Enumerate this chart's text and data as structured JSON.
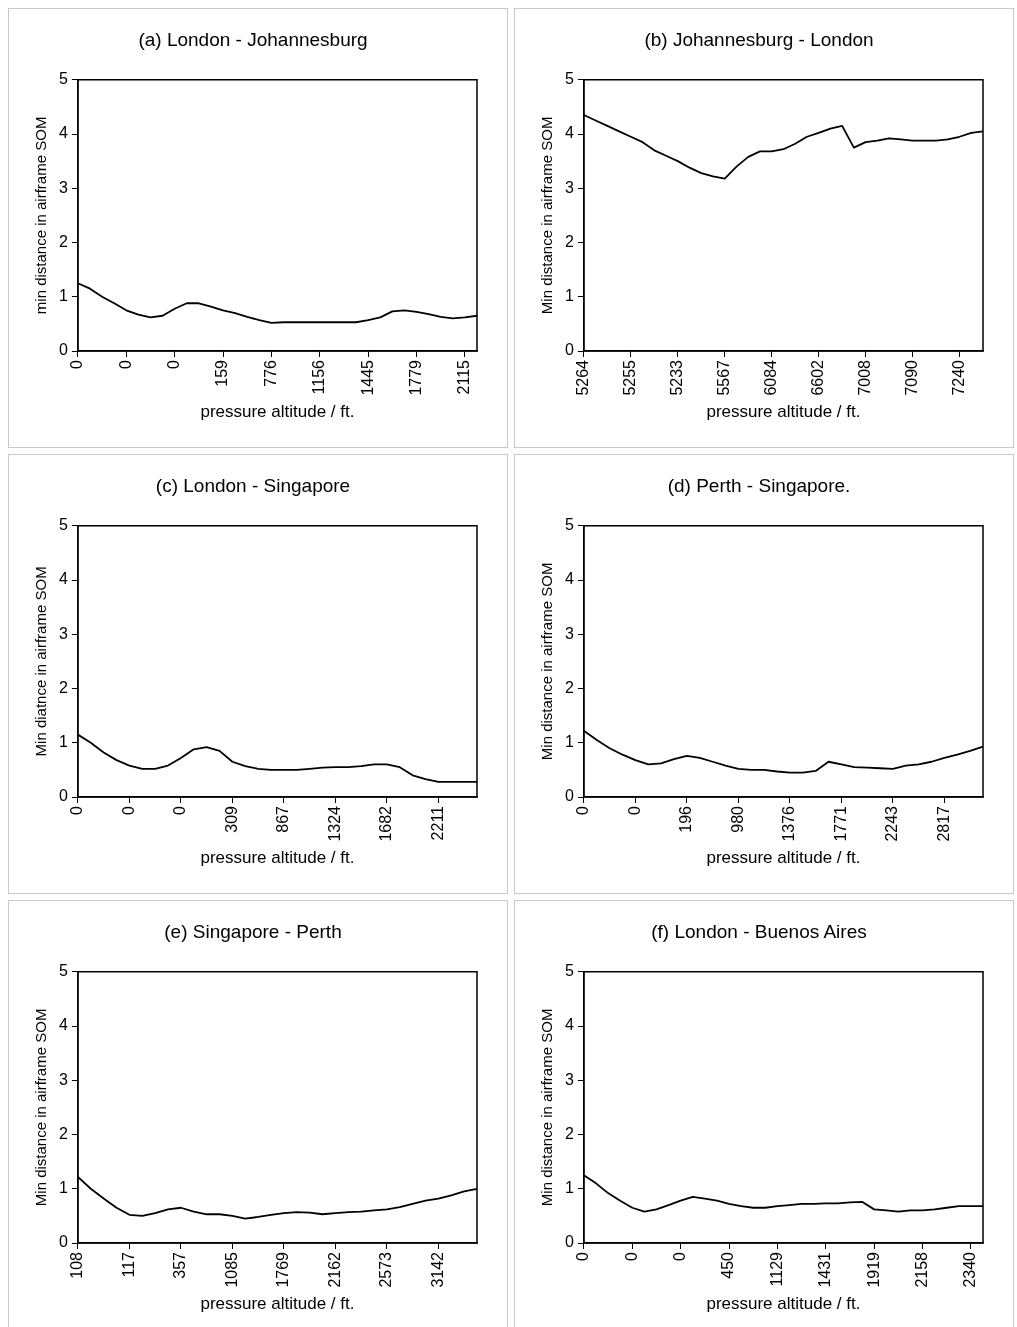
{
  "chart_data": [
    {
      "type": "line",
      "title": "(a) London - Johannesburg",
      "xlabel": "pressure altitude / ft.",
      "ylabel": "min distance in airframe SOM",
      "categories": [
        "0",
        null,
        null,
        null,
        "0",
        null,
        null,
        null,
        "0",
        null,
        null,
        null,
        "159",
        null,
        null,
        null,
        "776",
        null,
        null,
        null,
        "1156",
        null,
        null,
        null,
        "1445",
        null,
        null,
        null,
        "1779",
        null,
        null,
        null,
        "2115",
        null
      ],
      "series": [
        {
          "color": "#000000",
          "values": [
            1.25,
            1.15,
            1.0,
            0.88,
            0.75,
            0.67,
            0.62,
            0.65,
            0.78,
            0.88,
            0.88,
            0.82,
            0.75,
            0.7,
            0.63,
            0.57,
            0.52,
            0.53,
            0.53,
            0.53,
            0.53,
            0.53,
            0.53,
            0.53,
            0.57,
            0.62,
            0.73,
            0.75,
            0.72,
            0.68,
            0.63,
            0.6,
            0.62,
            0.65
          ]
        }
      ],
      "ylim": [
        0,
        5
      ],
      "yticks": [
        0,
        1,
        2,
        3,
        4,
        5
      ],
      "grid": false,
      "legend": false,
      "marker": "none",
      "line_style": "solid"
    },
    {
      "type": "line",
      "title": "(b) Johannesburg - London",
      "xlabel": "pressure altitude / ft.",
      "ylabel": "Min distance in airframe SOM",
      "categories": [
        "5264",
        null,
        null,
        null,
        "5255",
        null,
        null,
        null,
        "5233",
        null,
        null,
        null,
        "5567",
        null,
        null,
        null,
        "6084",
        null,
        null,
        null,
        "6602",
        null,
        null,
        null,
        "7008",
        null,
        null,
        null,
        "7090",
        null,
        null,
        null,
        "7240",
        null,
        null
      ],
      "series": [
        {
          "color": "#000000",
          "values": [
            4.35,
            4.25,
            4.15,
            4.05,
            3.95,
            3.85,
            3.7,
            3.6,
            3.5,
            3.38,
            3.28,
            3.22,
            3.18,
            3.4,
            3.58,
            3.68,
            3.68,
            3.72,
            3.82,
            3.95,
            4.02,
            4.1,
            4.15,
            3.75,
            3.85,
            3.88,
            3.92,
            3.9,
            3.88,
            3.88,
            3.88,
            3.9,
            3.95,
            4.02,
            4.05
          ]
        }
      ],
      "ylim": [
        0,
        5
      ],
      "yticks": [
        0,
        1,
        2,
        3,
        4,
        5
      ],
      "grid": false,
      "legend": false,
      "marker": "none",
      "line_style": "solid"
    },
    {
      "type": "line",
      "title": "(c) London - Singapore",
      "xlabel": "pressure altitude / ft.",
      "ylabel": "Min diatnce in airframe SOM",
      "categories": [
        "0",
        null,
        null,
        null,
        "0",
        null,
        null,
        null,
        "0",
        null,
        null,
        null,
        "309",
        null,
        null,
        null,
        "867",
        null,
        null,
        null,
        "1324",
        null,
        null,
        null,
        "1682",
        null,
        null,
        null,
        "2211",
        null,
        null,
        null
      ],
      "series": [
        {
          "color": "#000000",
          "values": [
            1.15,
            1.0,
            0.82,
            0.68,
            0.58,
            0.52,
            0.52,
            0.58,
            0.72,
            0.88,
            0.92,
            0.85,
            0.65,
            0.57,
            0.52,
            0.5,
            0.5,
            0.5,
            0.52,
            0.54,
            0.55,
            0.55,
            0.57,
            0.6,
            0.6,
            0.55,
            0.4,
            0.33,
            0.28,
            0.28,
            0.28,
            0.28
          ]
        }
      ],
      "ylim": [
        0,
        5
      ],
      "yticks": [
        0,
        1,
        2,
        3,
        4,
        5
      ],
      "grid": false,
      "legend": false,
      "marker": "none",
      "line_style": "solid"
    },
    {
      "type": "line",
      "title": "(d) Perth - Singapore.",
      "xlabel": "pressure altitude / ft.",
      "ylabel": "Min distance in airframe SOM",
      "categories": [
        "0",
        null,
        null,
        null,
        "0",
        null,
        null,
        null,
        "196",
        null,
        null,
        null,
        "980",
        null,
        null,
        null,
        "1376",
        null,
        null,
        null,
        "1771",
        null,
        null,
        null,
        "2243",
        null,
        null,
        null,
        "2817",
        null,
        null,
        null
      ],
      "series": [
        {
          "color": "#000000",
          "values": [
            1.22,
            1.05,
            0.9,
            0.78,
            0.68,
            0.6,
            0.62,
            0.7,
            0.76,
            0.72,
            0.65,
            0.58,
            0.52,
            0.5,
            0.5,
            0.47,
            0.45,
            0.45,
            0.48,
            0.65,
            0.6,
            0.55,
            0.54,
            0.53,
            0.52,
            0.58,
            0.6,
            0.65,
            0.72,
            0.78,
            0.85,
            0.93
          ]
        }
      ],
      "ylim": [
        0,
        5
      ],
      "yticks": [
        0,
        1,
        2,
        3,
        4,
        5
      ],
      "grid": false,
      "legend": false,
      "marker": "none",
      "line_style": "solid"
    },
    {
      "type": "line",
      "title": "(e) Singapore - Perth",
      "xlabel": "pressure altitude / ft.",
      "ylabel": "Min distance in airframe SOM",
      "categories": [
        "108",
        null,
        null,
        null,
        "117",
        null,
        null,
        null,
        "357",
        null,
        null,
        null,
        "1085",
        null,
        null,
        null,
        "1769",
        null,
        null,
        null,
        "2162",
        null,
        null,
        null,
        "2573",
        null,
        null,
        null,
        "3142",
        null,
        null,
        null
      ],
      "series": [
        {
          "color": "#000000",
          "values": [
            1.22,
            1.0,
            0.82,
            0.65,
            0.52,
            0.5,
            0.55,
            0.62,
            0.65,
            0.58,
            0.53,
            0.53,
            0.5,
            0.45,
            0.48,
            0.52,
            0.55,
            0.57,
            0.56,
            0.53,
            0.55,
            0.57,
            0.58,
            0.6,
            0.62,
            0.66,
            0.72,
            0.78,
            0.82,
            0.88,
            0.95,
            1.0
          ]
        }
      ],
      "ylim": [
        0,
        5
      ],
      "yticks": [
        0,
        1,
        2,
        3,
        4,
        5
      ],
      "grid": false,
      "legend": false,
      "marker": "none",
      "line_style": "solid"
    },
    {
      "type": "line",
      "title": "(f) London - Buenos Aires",
      "xlabel": "pressure altitude / ft.",
      "ylabel": "Min distance in airframe SOM",
      "categories": [
        "0",
        null,
        null,
        null,
        "0",
        null,
        null,
        null,
        "0",
        null,
        null,
        null,
        "450",
        null,
        null,
        null,
        "1129",
        null,
        null,
        null,
        "1431",
        null,
        null,
        null,
        "1919",
        null,
        null,
        null,
        "2158",
        null,
        null,
        null,
        "2340",
        null
      ],
      "series": [
        {
          "color": "#000000",
          "values": [
            1.25,
            1.1,
            0.92,
            0.78,
            0.65,
            0.58,
            0.62,
            0.7,
            0.78,
            0.85,
            0.82,
            0.78,
            0.72,
            0.68,
            0.65,
            0.65,
            0.68,
            0.7,
            0.72,
            0.72,
            0.73,
            0.73,
            0.75,
            0.76,
            0.62,
            0.6,
            0.58,
            0.6,
            0.6,
            0.62,
            0.65,
            0.68,
            0.68,
            0.68
          ]
        }
      ],
      "ylim": [
        0,
        5
      ],
      "yticks": [
        0,
        1,
        2,
        3,
        4,
        5
      ],
      "grid": false,
      "legend": false,
      "marker": "none",
      "line_style": "solid"
    }
  ]
}
